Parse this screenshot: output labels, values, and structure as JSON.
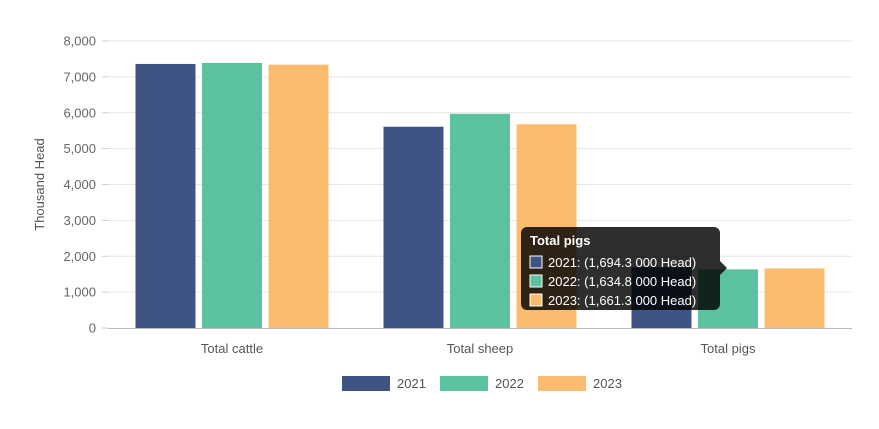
{
  "chart_data": {
    "type": "bar",
    "categories": [
      "Total cattle",
      "Total sheep",
      "Total pigs"
    ],
    "series": [
      {
        "name": "2021",
        "color": "#3f5482",
        "values": [
          7360,
          5610,
          1694.3
        ]
      },
      {
        "name": "2022",
        "color": "#5bc2a1",
        "values": [
          7390,
          5970,
          1634.8
        ]
      },
      {
        "name": "2023",
        "color": "#fcbc6f",
        "values": [
          7340,
          5680,
          1661.3
        ]
      }
    ],
    "ylabel": "Thousand Head",
    "ylim": [
      0,
      8000
    ],
    "yticks": [
      "0",
      "1,000",
      "2,000",
      "3,000",
      "4,000",
      "5,000",
      "6,000",
      "7,000",
      "8,000"
    ],
    "grid": true,
    "legend": "bottom",
    "tooltip": {
      "title": "Total pigs",
      "lines": [
        "2021: (1,694.3 000 Head)",
        "2022: (1,634.8 000 Head)",
        "2023: (1,661.3 000 Head)"
      ]
    }
  }
}
